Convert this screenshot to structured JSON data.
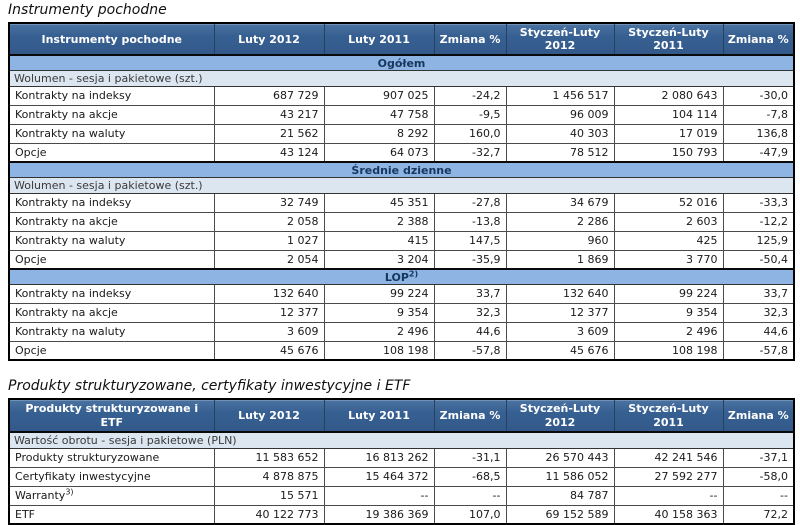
{
  "colors": {
    "header_bg": "#376092",
    "header_text": "#FFFFFF",
    "section_band_bg": "#8DB4E2",
    "section_band_text": "#17365D",
    "sub_band_bg": "#DCE6F1",
    "table_border": "#000000"
  },
  "tables": [
    {
      "title": "Instrumenty pochodne",
      "header": [
        "Instrumenty pochodne",
        "Luty 2012",
        "Luty 2011",
        "Zmiana %",
        "Styczeń-Luty 2012",
        "Styczeń-Luty 2011",
        "Zmiana %"
      ],
      "sections": [
        {
          "band": "Ogółem",
          "sub": "Wolumen - sesja i pakietowe (szt.)",
          "rows": [
            {
              "label": "Kontrakty na indeksy",
              "values": [
                "687 729",
                "907 025",
                "-24,2",
                "1 456 517",
                "2 080 643",
                "-30,0"
              ]
            },
            {
              "label": "Kontrakty na akcje",
              "values": [
                "43 217",
                "47 758",
                "-9,5",
                "96 009",
                "104 114",
                "-7,8"
              ]
            },
            {
              "label": "Kontrakty na waluty",
              "values": [
                "21 562",
                "8 292",
                "160,0",
                "40 303",
                "17 019",
                "136,8"
              ]
            },
            {
              "label": "Opcje",
              "values": [
                "43 124",
                "64 073",
                "-32,7",
                "78 512",
                "150 793",
                "-47,9"
              ]
            }
          ]
        },
        {
          "band": "Średnie dzienne",
          "sub": "Wolumen - sesja i pakietowe (szt.)",
          "rows": [
            {
              "label": "Kontrakty na indeksy",
              "values": [
                "32 749",
                "45 351",
                "-27,8",
                "34 679",
                "52 016",
                "-33,3"
              ]
            },
            {
              "label": "Kontrakty na akcje",
              "values": [
                "2 058",
                "2 388",
                "-13,8",
                "2 286",
                "2 603",
                "-12,2"
              ]
            },
            {
              "label": "Kontrakty na waluty",
              "values": [
                "1 027",
                "415",
                "147,5",
                "960",
                "425",
                "125,9"
              ]
            },
            {
              "label": "Opcje",
              "values": [
                "2 054",
                "3 204",
                "-35,9",
                "1 869",
                "3 770",
                "-50,4"
              ]
            }
          ]
        },
        {
          "band": "LOP",
          "band_sup": "2)",
          "rows": [
            {
              "label": "Kontrakty na indeksy",
              "values": [
                "132 640",
                "99 224",
                "33,7",
                "132 640",
                "99 224",
                "33,7"
              ]
            },
            {
              "label": "Kontrakty na akcje",
              "values": [
                "12 377",
                "9 354",
                "32,3",
                "12 377",
                "9 354",
                "32,3"
              ]
            },
            {
              "label": "Kontrakty na waluty",
              "values": [
                "3 609",
                "2 496",
                "44,6",
                "3 609",
                "2 496",
                "44,6"
              ]
            },
            {
              "label": "Opcje",
              "values": [
                "45 676",
                "108 198",
                "-57,8",
                "45 676",
                "108 198",
                "-57,8"
              ]
            }
          ]
        }
      ]
    },
    {
      "title": "Produkty strukturyzowane, certyfikaty inwestycyjne i ETF",
      "header": [
        "Produkty strukturyzowane i ETF",
        "Luty 2012",
        "Luty 2011",
        "Zmiana %",
        "Styczeń-Luty 2012",
        "Styczeń-Luty 2011",
        "Zmiana %"
      ],
      "sections": [
        {
          "sub": "Wartość obrotu - sesja i pakietowe (PLN)",
          "rows": [
            {
              "label": "Produkty strukturyzowane",
              "values": [
                "11 583 652",
                "16 813 262",
                "-31,1",
                "26 570 443",
                "42 241 546",
                "-37,1"
              ]
            },
            {
              "label": "Certyfikaty inwestycyjne",
              "values": [
                "4 878 875",
                "15 464 372",
                "-68,5",
                "11 586 052",
                "27 592 277",
                "-58,0"
              ]
            },
            {
              "label": "Warranty",
              "label_sup": "3)",
              "values": [
                "15 571",
                "--",
                "--",
                "84 787",
                "--",
                "--"
              ]
            },
            {
              "label": "ETF",
              "values": [
                "40 122 773",
                "19 386 369",
                "107,0",
                "69 152 589",
                "40 158 363",
                "72,2"
              ]
            }
          ]
        }
      ]
    }
  ]
}
